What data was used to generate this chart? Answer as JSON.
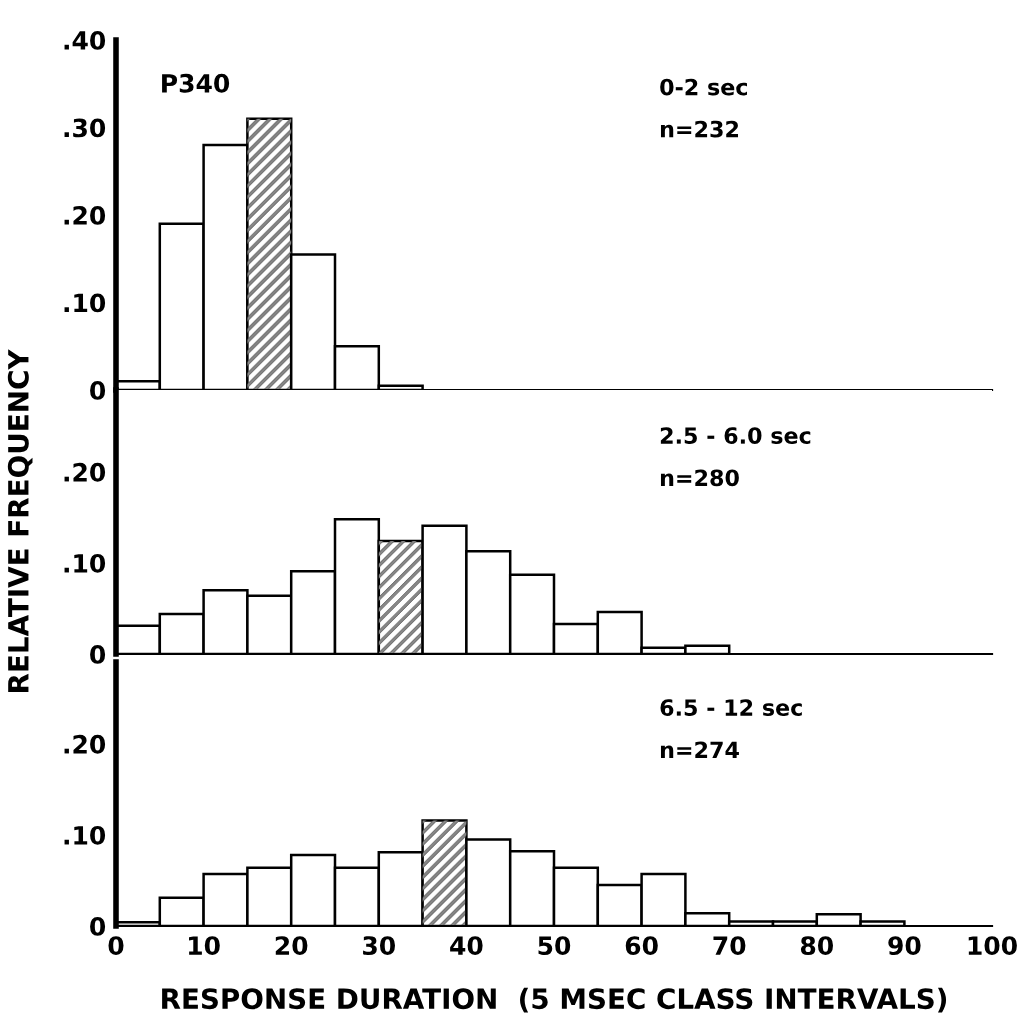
{
  "chart_data": [
    {
      "type": "histogram",
      "title": "0-2 sec",
      "subtitle": "n=232",
      "annotations": [
        "P340"
      ],
      "bins": [
        0,
        5,
        10,
        15,
        20,
        25,
        30,
        35
      ],
      "values": [
        0.01,
        0.19,
        0.28,
        0.31,
        0.155,
        0.05,
        0.005
      ],
      "colors": [
        "#ffffff",
        "#ffffff",
        "#ffffff",
        "#888888",
        "#ffffff",
        "#ffffff",
        "#ffffff"
      ],
      "xlim": [
        0,
        100
      ],
      "ylim": [
        0,
        0.4
      ],
      "yticks": [
        0,
        {
          "value": 0.1,
          "label": ".10"
        },
        {
          "value": 0.2,
          "label": ".20"
        },
        {
          "value": 0.3,
          "label": ".30"
        },
        {
          "value": 0.4,
          "label": ".40"
        }
      ],
      "tick_labels": "y",
      "grid": false,
      "legend": false
    },
    {
      "type": "histogram",
      "title": "2.5 - 6.0 sec",
      "subtitle": "n=280",
      "ylabel": "RELATIVE FREQUENCY",
      "bins": [
        0,
        5,
        10,
        15,
        20,
        25,
        30,
        35,
        40,
        45,
        50,
        55,
        60,
        65,
        70
      ],
      "values": [
        0.031,
        0.044,
        0.07,
        0.064,
        0.091,
        0.148,
        0.124,
        0.141,
        0.113,
        0.087,
        0.033,
        0.046,
        0.007,
        0.009
      ],
      "colors": [
        "#ffffff",
        "#ffffff",
        "#ffffff",
        "#ffffff",
        "#ffffff",
        "#ffffff",
        "#888888",
        "#ffffff",
        "#ffffff",
        "#ffffff",
        "#ffffff",
        "#ffffff",
        "#ffffff",
        "#ffffff"
      ],
      "xlim": [
        0,
        100
      ],
      "ylim": [
        0,
        0.29
      ],
      "yticks": [
        0,
        {
          "value": 0.1,
          "label": ".10"
        },
        {
          "value": 0.2,
          "label": ".20"
        }
      ],
      "tick_labels": "y",
      "grid": false,
      "legend": false
    },
    {
      "type": "histogram",
      "title": "6.5 - 12 sec",
      "subtitle": "n=274",
      "xlabel": "RESPONSE DURATION  (5 MSEC CLASS INTERVALS)",
      "bins": [
        0,
        5,
        10,
        15,
        20,
        25,
        30,
        35,
        40,
        45,
        50,
        55,
        60,
        65,
        70,
        75,
        80,
        85,
        90
      ],
      "values": [
        0.004,
        0.031,
        0.057,
        0.064,
        0.078,
        0.064,
        0.081,
        0.116,
        0.095,
        0.082,
        0.064,
        0.045,
        0.057,
        0.014,
        0.005,
        0.005,
        0.013,
        0.005
      ],
      "colors": [
        "#ffffff",
        "#ffffff",
        "#ffffff",
        "#ffffff",
        "#ffffff",
        "#ffffff",
        "#ffffff",
        "#888888",
        "#ffffff",
        "#ffffff",
        "#ffffff",
        "#ffffff",
        "#ffffff",
        "#ffffff",
        "#ffffff",
        "#ffffff",
        "#ffffff",
        "#ffffff"
      ],
      "xlim": [
        0,
        100
      ],
      "ylim": [
        0,
        0.29
      ],
      "xticks": [
        0,
        10,
        20,
        30,
        40,
        50,
        60,
        70,
        80,
        90,
        100
      ],
      "yticks": [
        0,
        {
          "value": 0.1,
          "label": ".10"
        },
        {
          "value": 0.2,
          "label": ".20"
        }
      ],
      "grid": false,
      "legend": false
    }
  ]
}
